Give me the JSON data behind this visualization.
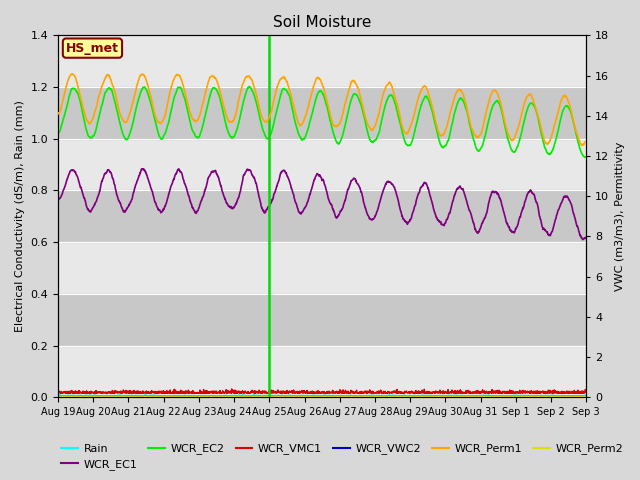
{
  "title": "Soil Moisture",
  "ylabel_left": "Electrical Conductivity (dS/m), Rain (mm)",
  "ylabel_right": "VWC (m3/m3), Permittivity",
  "ylim_left": [
    0,
    1.4
  ],
  "ylim_right": [
    0,
    18
  ],
  "fig_bg_color": "#d8d8d8",
  "plot_bg_color": "#e8e8e8",
  "band_color": "#c8c8c8",
  "annotation_label": "HS_met",
  "annotation_color": "#8B0000",
  "annotation_bg": "#ffff99",
  "colors": {
    "Rain": "#00ffff",
    "WCR_EC1": "#800080",
    "WCR_EC2": "#00ee00",
    "WCR_VMC1": "#dd0000",
    "WCR_VWC2": "#0000cc",
    "WCR_Perm1": "#ffa500",
    "WCR_Perm2": "#dddd00"
  },
  "vline_day_index": 6,
  "day_labels": [
    "Aug 19",
    "Aug 20",
    "Aug 21",
    "Aug 22",
    "Aug 23",
    "Aug 24",
    "Aug 25",
    "Aug 26",
    "Aug 27",
    "Aug 28",
    "Aug 29",
    "Aug 30",
    "Aug 31",
    "Sep 1",
    "Sep 2",
    "Sep 3"
  ]
}
